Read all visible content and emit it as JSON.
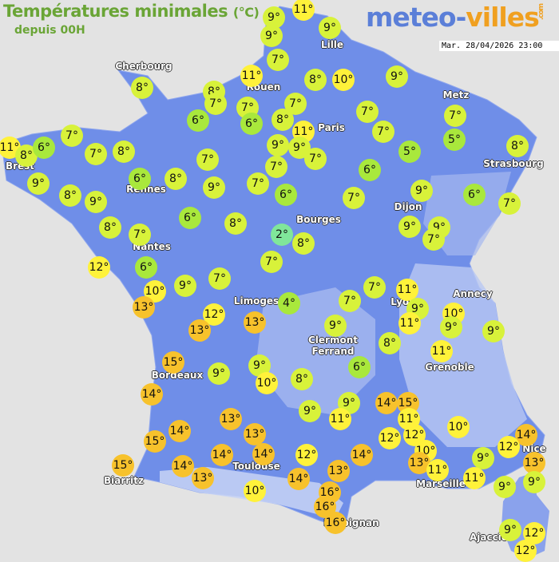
{
  "header": {
    "title": "Températures minimales",
    "unit": "(°C)",
    "subtitle": "depuis 00H",
    "logo_main": "meteo-",
    "logo_accent": "villes",
    "logo_suffix": ".com",
    "datetime": "Mar. 28/04/2026 23:00"
  },
  "colors": {
    "land": "#6f8ee8",
    "relief": "#b9c8f2",
    "sea": "#e3e3e3",
    "title": "#6aa536",
    "temp_cold": "#80e69a",
    "temp_cool": "#a9e83c",
    "temp_mild": "#d8f23a",
    "temp_warm": "#fff23a",
    "temp_hot": "#f7c22c"
  },
  "cities": [
    "Cherbourg",
    "Lille",
    "Rouen",
    "Paris",
    "Metz",
    "Strasbourg",
    "Brest",
    "Rennes",
    "Dijon",
    "Bourges",
    "Nantes",
    "Limoges",
    "Lyon",
    "Annecy",
    "Clermont Ferrand",
    "Grenoble",
    "Bordeaux",
    "Nice",
    "Toulouse",
    "Biarritz",
    "Marseille",
    "Perpignan",
    "Ajaccio"
  ],
  "temperatures": [
    11,
    9,
    9,
    9,
    7,
    8,
    11,
    8,
    10,
    9,
    8,
    7,
    7,
    7,
    6,
    6,
    8,
    11,
    7,
    7,
    7,
    11,
    8,
    6,
    7,
    8,
    7,
    5,
    8,
    9,
    9,
    7,
    7,
    5,
    7,
    6,
    8,
    9,
    7,
    6,
    9,
    8,
    9,
    6,
    7,
    9,
    6,
    7,
    8,
    7,
    6,
    8,
    9,
    9,
    7,
    2,
    8,
    12,
    6,
    7,
    9,
    7,
    7,
    11,
    10,
    13,
    4,
    7,
    9,
    10,
    9,
    11,
    9,
    12,
    13,
    13,
    9,
    8,
    11,
    15,
    9,
    9,
    10,
    8,
    6,
    14,
    9,
    14,
    15,
    9,
    11,
    11,
    13,
    10,
    14,
    13,
    12,
    12,
    14,
    12,
    15,
    10,
    12,
    14,
    14,
    14,
    13,
    13,
    15,
    14,
    9,
    11,
    13,
    14,
    11,
    13,
    9,
    9,
    10,
    16,
    16,
    16,
    9,
    12,
    12
  ]
}
